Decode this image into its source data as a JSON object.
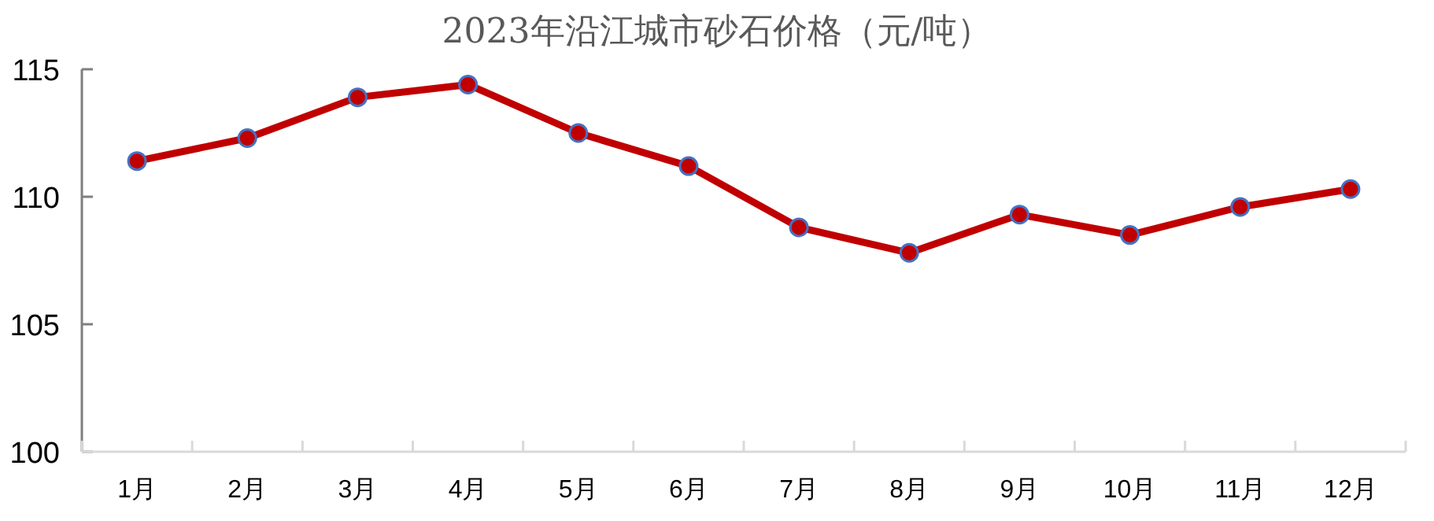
{
  "chart_data": {
    "type": "line",
    "title": "2023年沿江城市砂石价格（元/吨）",
    "categories": [
      "1月",
      "2月",
      "3月",
      "4月",
      "5月",
      "6月",
      "7月",
      "8月",
      "9月",
      "10月",
      "11月",
      "12月"
    ],
    "series": [
      {
        "color": "#c00000",
        "values": [
          111.4,
          112.3,
          113.9,
          114.4,
          112.5,
          111.2,
          108.8,
          107.8,
          109.3,
          108.5,
          109.6,
          110.3
        ]
      }
    ],
    "ylim": [
      100,
      115
    ],
    "yticks": [
      100,
      105,
      110,
      115
    ],
    "grid": false,
    "marker": "circle",
    "line_style": "solid"
  }
}
